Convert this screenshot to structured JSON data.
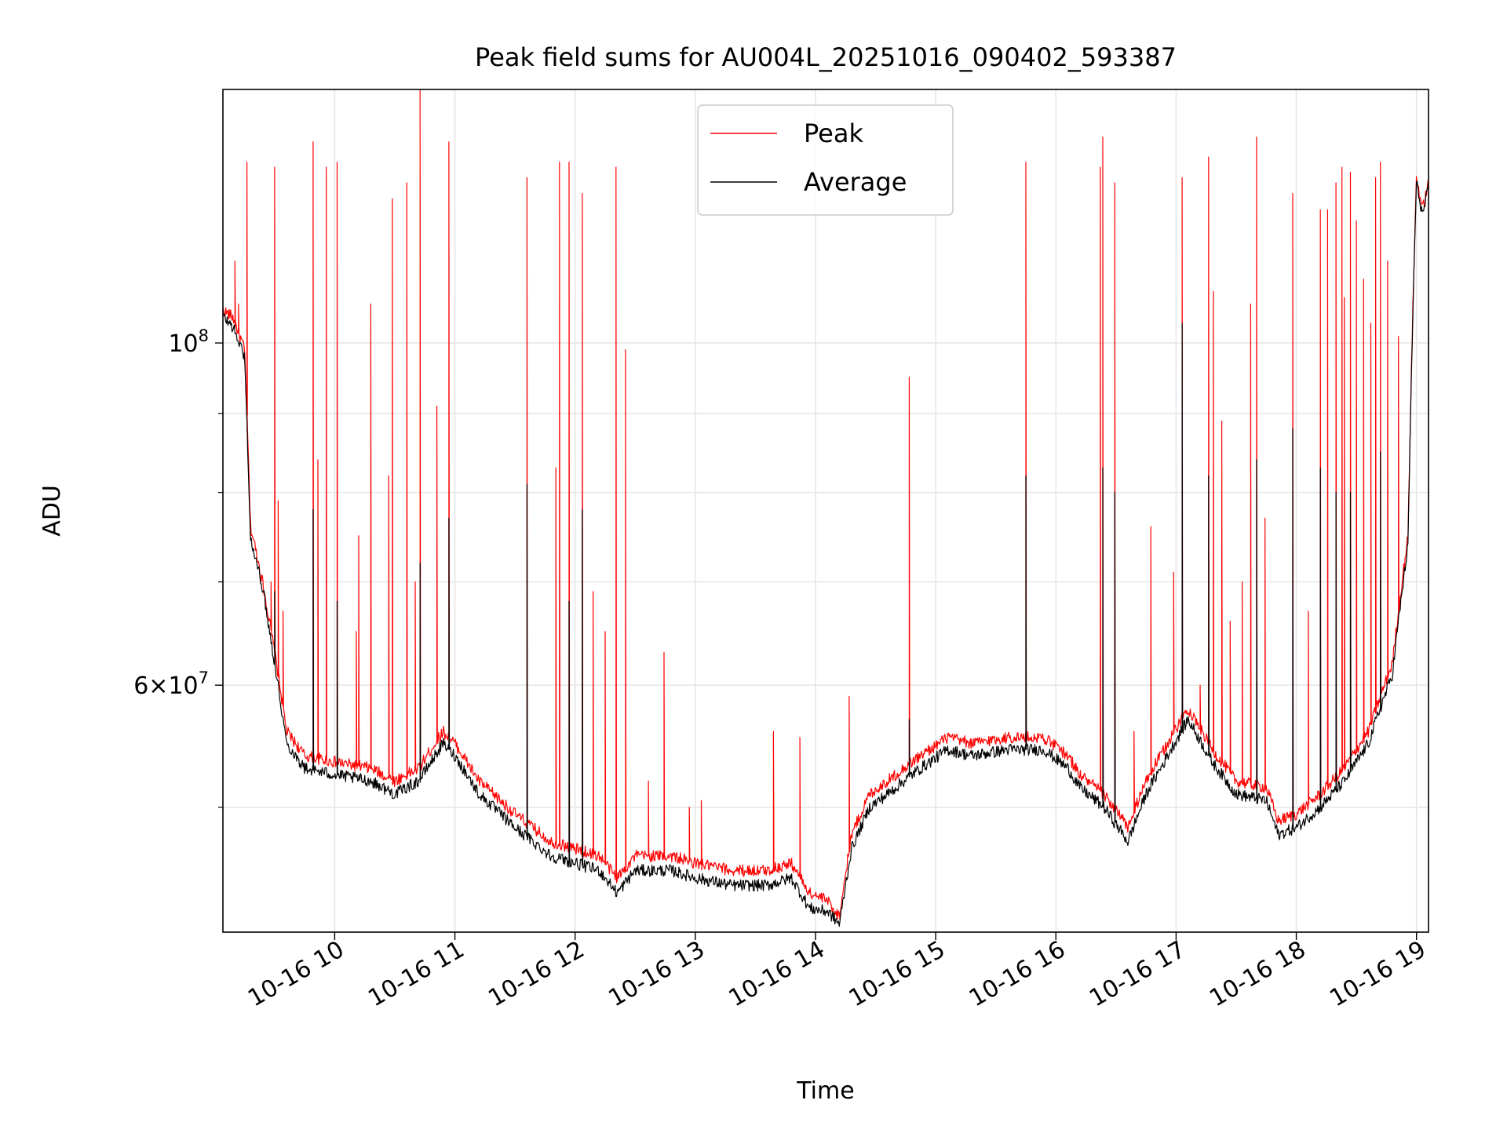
{
  "chart_data": {
    "type": "line",
    "title": "Peak field sums for AU004L_20251016_090402_593387",
    "xlabel": "Time",
    "ylabel": "ADU",
    "yscale": "log",
    "xlim": [
      9.07,
      19.1
    ],
    "ylim": [
      41500000,
      146000000
    ],
    "grid": true,
    "legend_position": "upper center",
    "x_ticks": [
      {
        "value": 10,
        "label": "10-16 10"
      },
      {
        "value": 11,
        "label": "10-16 11"
      },
      {
        "value": 12,
        "label": "10-16 12"
      },
      {
        "value": 13,
        "label": "10-16 13"
      },
      {
        "value": 14,
        "label": "10-16 14"
      },
      {
        "value": 15,
        "label": "10-16 15"
      },
      {
        "value": 16,
        "label": "10-16 16"
      },
      {
        "value": 17,
        "label": "10-16 17"
      },
      {
        "value": 18,
        "label": "10-16 18"
      },
      {
        "value": 19,
        "label": "10-16 19"
      }
    ],
    "y_major_ticks": [
      {
        "value": 100000000,
        "base": "10",
        "exp": "8"
      },
      {
        "value": 60000000,
        "mantissa": "6×",
        "base": "10",
        "exp": "7"
      }
    ],
    "y_minor_ticks": [
      50000000,
      70000000,
      80000000,
      90000000
    ],
    "series": [
      {
        "name": "Peak",
        "color": "#ff0000",
        "baseline": [
          [
            9.07,
            105000000
          ],
          [
            9.15,
            104000000
          ],
          [
            9.25,
            99000000
          ],
          [
            9.3,
            76000000
          ],
          [
            9.4,
            70000000
          ],
          [
            9.5,
            63000000
          ],
          [
            9.6,
            56000000
          ],
          [
            9.75,
            54000000
          ],
          [
            10.0,
            53500000
          ],
          [
            10.3,
            53000000
          ],
          [
            10.5,
            52000000
          ],
          [
            10.7,
            53000000
          ],
          [
            10.9,
            56000000
          ],
          [
            11.0,
            55000000
          ],
          [
            11.2,
            52000000
          ],
          [
            11.5,
            49500000
          ],
          [
            11.8,
            47500000
          ],
          [
            12.0,
            47000000
          ],
          [
            12.2,
            46500000
          ],
          [
            12.35,
            45000000
          ],
          [
            12.5,
            46500000
          ],
          [
            12.8,
            46500000
          ],
          [
            13.0,
            46000000
          ],
          [
            13.3,
            45500000
          ],
          [
            13.6,
            45500000
          ],
          [
            13.8,
            46000000
          ],
          [
            13.95,
            44000000
          ],
          [
            14.1,
            43500000
          ],
          [
            14.2,
            42500000
          ],
          [
            14.3,
            48000000
          ],
          [
            14.45,
            51000000
          ],
          [
            14.6,
            52000000
          ],
          [
            14.8,
            53500000
          ],
          [
            15.1,
            55500000
          ],
          [
            15.3,
            55000000
          ],
          [
            15.6,
            55500000
          ],
          [
            15.9,
            55500000
          ],
          [
            16.1,
            54000000
          ],
          [
            16.2,
            52500000
          ],
          [
            16.4,
            51000000
          ],
          [
            16.6,
            48500000
          ],
          [
            16.75,
            52000000
          ],
          [
            16.9,
            54500000
          ],
          [
            17.1,
            58000000
          ],
          [
            17.3,
            54500000
          ],
          [
            17.5,
            52000000
          ],
          [
            17.75,
            51500000
          ],
          [
            17.85,
            49000000
          ],
          [
            18.0,
            49500000
          ],
          [
            18.2,
            51000000
          ],
          [
            18.4,
            53000000
          ],
          [
            18.6,
            56000000
          ],
          [
            18.8,
            62000000
          ],
          [
            18.93,
            75000000
          ],
          [
            19.0,
            128000000
          ],
          [
            19.05,
            122000000
          ],
          [
            19.1,
            127000000
          ]
        ],
        "spikes": [
          [
            9.17,
            113000000
          ],
          [
            9.2,
            106000000
          ],
          [
            9.27,
            131000000
          ],
          [
            9.47,
            70000000
          ],
          [
            9.5,
            130000000
          ],
          [
            9.53,
            79000000
          ],
          [
            9.57,
            67000000
          ],
          [
            9.82,
            135000000
          ],
          [
            9.86,
            84000000
          ],
          [
            9.93,
            130000000
          ],
          [
            10.02,
            131000000
          ],
          [
            10.18,
            65000000
          ],
          [
            10.2,
            75000000
          ],
          [
            10.3,
            106000000
          ],
          [
            10.45,
            82000000
          ],
          [
            10.48,
            124000000
          ],
          [
            10.6,
            127000000
          ],
          [
            10.67,
            70000000
          ],
          [
            10.71,
            148000000
          ],
          [
            10.85,
            91000000
          ],
          [
            10.95,
            135000000
          ],
          [
            11.6,
            128000000
          ],
          [
            11.84,
            83000000
          ],
          [
            11.87,
            131000000
          ],
          [
            11.95,
            131000000
          ],
          [
            12.06,
            125000000
          ],
          [
            12.15,
            69000000
          ],
          [
            12.25,
            65000000
          ],
          [
            12.34,
            130000000
          ],
          [
            12.42,
            99000000
          ],
          [
            12.61,
            52000000
          ],
          [
            12.74,
            63000000
          ],
          [
            12.95,
            50000000
          ],
          [
            13.05,
            50500000
          ],
          [
            13.65,
            56000000
          ],
          [
            13.87,
            55500000
          ],
          [
            14.28,
            59000000
          ],
          [
            14.78,
            95000000
          ],
          [
            15.75,
            131000000
          ],
          [
            16.37,
            130000000
          ],
          [
            16.39,
            136000000
          ],
          [
            16.49,
            127000000
          ],
          [
            16.65,
            56000000
          ],
          [
            16.79,
            76000000
          ],
          [
            16.98,
            71000000
          ],
          [
            17.05,
            128000000
          ],
          [
            17.2,
            60000000
          ],
          [
            17.27,
            132000000
          ],
          [
            17.31,
            108000000
          ],
          [
            17.38,
            89000000
          ],
          [
            17.45,
            66000000
          ],
          [
            17.55,
            70000000
          ],
          [
            17.62,
            106000000
          ],
          [
            17.67,
            136000000
          ],
          [
            17.74,
            77000000
          ],
          [
            17.97,
            125000000
          ],
          [
            18.1,
            67000000
          ],
          [
            18.2,
            122000000
          ],
          [
            18.26,
            122000000
          ],
          [
            18.33,
            127000000
          ],
          [
            18.38,
            130000000
          ],
          [
            18.4,
            107000000
          ],
          [
            18.45,
            129000000
          ],
          [
            18.5,
            120000000
          ],
          [
            18.56,
            110000000
          ],
          [
            18.62,
            103000000
          ],
          [
            18.66,
            128000000
          ],
          [
            18.7,
            131000000
          ],
          [
            18.76,
            113000000
          ],
          [
            18.85,
            101000000
          ]
        ]
      },
      {
        "name": "Average",
        "color": "#000000",
        "baseline": [
          [
            9.07,
            104000000
          ],
          [
            9.15,
            102500000
          ],
          [
            9.25,
            98000000
          ],
          [
            9.3,
            74500000
          ],
          [
            9.4,
            69500000
          ],
          [
            9.5,
            62000000
          ],
          [
            9.6,
            55000000
          ],
          [
            9.75,
            53000000
          ],
          [
            10.0,
            52500000
          ],
          [
            10.3,
            52000000
          ],
          [
            10.5,
            51000000
          ],
          [
            10.7,
            52000000
          ],
          [
            10.9,
            55000000
          ],
          [
            11.0,
            54000000
          ],
          [
            11.2,
            51000000
          ],
          [
            11.5,
            48500000
          ],
          [
            11.8,
            46500000
          ],
          [
            12.0,
            46000000
          ],
          [
            12.2,
            45500000
          ],
          [
            12.35,
            44000000
          ],
          [
            12.5,
            45500000
          ],
          [
            12.8,
            45500000
          ],
          [
            13.0,
            45000000
          ],
          [
            13.3,
            44500000
          ],
          [
            13.6,
            44500000
          ],
          [
            13.8,
            45000000
          ],
          [
            13.95,
            43000000
          ],
          [
            14.1,
            42800000
          ],
          [
            14.2,
            42000000
          ],
          [
            14.3,
            47000000
          ],
          [
            14.45,
            50000000
          ],
          [
            14.6,
            51000000
          ],
          [
            14.8,
            52500000
          ],
          [
            15.1,
            54500000
          ],
          [
            15.3,
            54000000
          ],
          [
            15.6,
            54500000
          ],
          [
            15.9,
            54500000
          ],
          [
            16.1,
            53000000
          ],
          [
            16.2,
            51500000
          ],
          [
            16.4,
            50000000
          ],
          [
            16.6,
            47500000
          ],
          [
            16.75,
            51000000
          ],
          [
            16.9,
            53500000
          ],
          [
            17.1,
            57000000
          ],
          [
            17.3,
            53500000
          ],
          [
            17.5,
            51000000
          ],
          [
            17.75,
            50500000
          ],
          [
            17.85,
            48000000
          ],
          [
            18.0,
            48500000
          ],
          [
            18.2,
            50000000
          ],
          [
            18.4,
            52000000
          ],
          [
            18.6,
            55000000
          ],
          [
            18.8,
            61000000
          ],
          [
            18.93,
            74000000
          ],
          [
            19.0,
            127000000
          ],
          [
            19.05,
            121000000
          ],
          [
            19.1,
            126000000
          ]
        ],
        "spikes": [
          [
            9.5,
            69000000
          ],
          [
            9.82,
            78000000
          ],
          [
            10.02,
            68000000
          ],
          [
            10.71,
            72000000
          ],
          [
            10.95,
            77000000
          ],
          [
            11.6,
            81000000
          ],
          [
            11.95,
            68000000
          ],
          [
            12.06,
            78000000
          ],
          [
            14.78,
            57000000
          ],
          [
            15.75,
            82000000
          ],
          [
            16.39,
            83000000
          ],
          [
            16.49,
            80000000
          ],
          [
            17.05,
            103000000
          ],
          [
            17.27,
            82000000
          ],
          [
            17.67,
            84000000
          ],
          [
            17.97,
            88000000
          ],
          [
            18.2,
            83000000
          ],
          [
            18.33,
            80000000
          ],
          [
            18.45,
            80000000
          ],
          [
            18.7,
            85000000
          ]
        ]
      }
    ]
  }
}
